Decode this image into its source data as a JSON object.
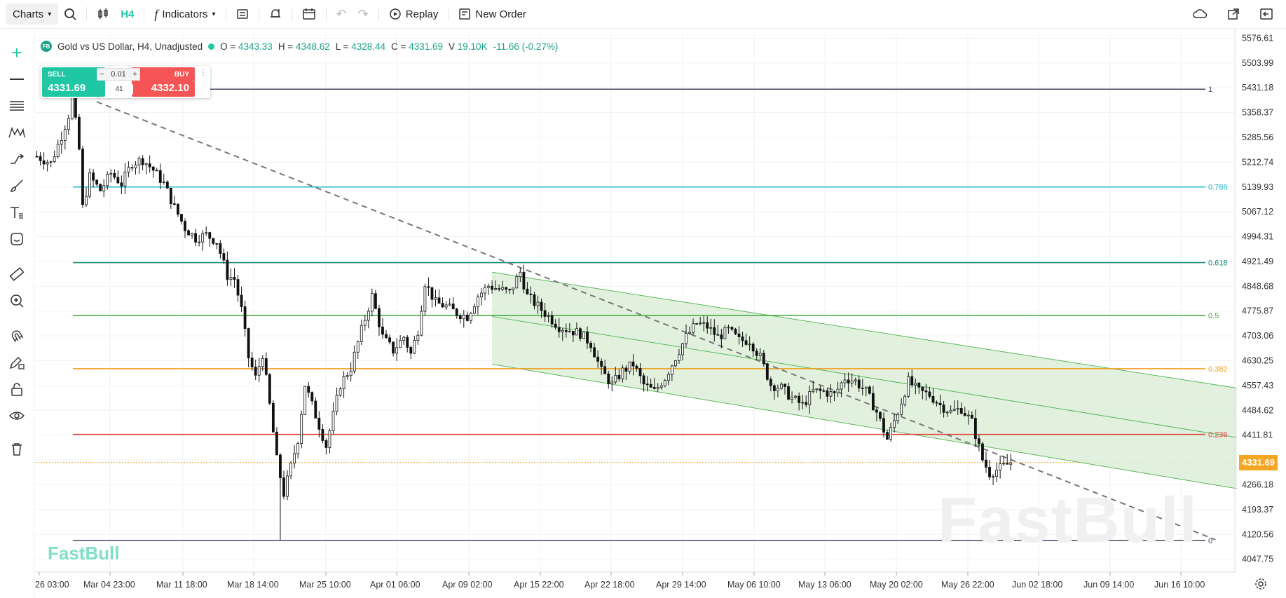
{
  "toolbar": {
    "charts_label": "Charts",
    "timeframe": "H4",
    "indicators_label": "Indicators",
    "replay_label": "Replay",
    "new_order_label": "New Order"
  },
  "legend": {
    "symbol_badge": "FB",
    "symbol": "Gold vs US Dollar, H4, Unadjusted",
    "open_label": "O =",
    "open": "4343.33",
    "high_label": "H =",
    "high": "4348.62",
    "low_label": "L =",
    "low": "4328.44",
    "close_label": "C =",
    "close": "4331.69",
    "volume_label": "V",
    "volume": "19.10K",
    "change": "-11.66 (-0.27%)"
  },
  "trade": {
    "sell_label": "SELL",
    "sell_price": "4331.69",
    "buy_label": "BUY",
    "buy_price": "4332.10",
    "quantity": "0.01",
    "spread": "41",
    "minus": "−",
    "plus": "+"
  },
  "colors": {
    "up": "#1fc7a5",
    "down": "#f55555",
    "candle": "#111111",
    "channel_fill": "#dcefd8",
    "channel_line": "#5cb85c",
    "price_tag": "#f5a623"
  },
  "current_price_tag": "4331.69",
  "watermark": "FastBull",
  "logo": "FastBull",
  "chart_data": {
    "type": "candlestick",
    "symbol": "Gold vs US Dollar",
    "timeframe": "H4",
    "ylim": [
      4010,
      5590
    ],
    "y_ticks": [
      "5576.61",
      "5503.99",
      "5431.18",
      "5358.37",
      "5285.56",
      "5212.74",
      "5139.93",
      "5067.12",
      "4994.31",
      "4921.49",
      "4848.68",
      "4775.87",
      "4703.06",
      "4630.25",
      "4557.43",
      "4484.62",
      "4411.81",
      "4339.00",
      "4266.18",
      "4193.37",
      "4120.56",
      "4047.75"
    ],
    "x_labels": [
      "26 03:00",
      "Mar 04 23:00",
      "Mar 11 18:00",
      "Mar 18 14:00",
      "Mar 25 10:00",
      "Apr 01 06:00",
      "Apr 09 02:00",
      "Apr 15 22:00",
      "Apr 22 18:00",
      "Apr 29 14:00",
      "May 06 10:00",
      "May 13 06:00",
      "May 20 02:00",
      "May 26 22:00",
      "Jun 02 18:00",
      "Jun 09 14:00",
      "Jun 16 10:00"
    ],
    "price_path": [
      [
        0,
        5230
      ],
      [
        4,
        5210
      ],
      [
        7,
        5290
      ],
      [
        9,
        5350
      ],
      [
        10,
        5410
      ],
      [
        12,
        5250
      ],
      [
        13,
        5080
      ],
      [
        15,
        5170
      ],
      [
        18,
        5130
      ],
      [
        21,
        5180
      ],
      [
        24,
        5150
      ],
      [
        27,
        5210
      ],
      [
        30,
        5220
      ],
      [
        33,
        5190
      ],
      [
        36,
        5150
      ],
      [
        39,
        5080
      ],
      [
        42,
        5020
      ],
      [
        45,
        4990
      ],
      [
        48,
        5000
      ],
      [
        51,
        4980
      ],
      [
        54,
        4880
      ],
      [
        56,
        4870
      ],
      [
        58,
        4780
      ],
      [
        60,
        4640
      ],
      [
        62,
        4580
      ],
      [
        64,
        4650
      ],
      [
        66,
        4500
      ],
      [
        68,
        4340
      ],
      [
        70,
        4240
      ],
      [
        72,
        4320
      ],
      [
        74,
        4400
      ],
      [
        76,
        4560
      ],
      [
        78,
        4500
      ],
      [
        80,
        4440
      ],
      [
        82,
        4380
      ],
      [
        84,
        4470
      ],
      [
        86,
        4560
      ],
      [
        89,
        4610
      ],
      [
        92,
        4720
      ],
      [
        95,
        4820
      ],
      [
        98,
        4700
      ],
      [
        101,
        4660
      ],
      [
        104,
        4700
      ],
      [
        106,
        4650
      ],
      [
        108,
        4720
      ],
      [
        110,
        4860
      ],
      [
        113,
        4800
      ],
      [
        116,
        4790
      ],
      [
        119,
        4770
      ],
      [
        122,
        4760
      ],
      [
        125,
        4820
      ],
      [
        128,
        4850
      ],
      [
        131,
        4840
      ],
      [
        134,
        4830
      ],
      [
        137,
        4890
      ],
      [
        139,
        4820
      ],
      [
        142,
        4790
      ],
      [
        145,
        4760
      ],
      [
        148,
        4730
      ],
      [
        151,
        4720
      ],
      [
        154,
        4710
      ],
      [
        157,
        4680
      ],
      [
        160,
        4600
      ],
      [
        163,
        4560
      ],
      [
        166,
        4600
      ],
      [
        169,
        4620
      ],
      [
        172,
        4560
      ],
      [
        175,
        4540
      ],
      [
        178,
        4580
      ],
      [
        181,
        4640
      ],
      [
        184,
        4700
      ],
      [
        187,
        4740
      ],
      [
        190,
        4730
      ],
      [
        193,
        4700
      ],
      [
        196,
        4720
      ],
      [
        199,
        4690
      ],
      [
        202,
        4690
      ],
      [
        205,
        4640
      ],
      [
        208,
        4560
      ],
      [
        211,
        4550
      ],
      [
        214,
        4520
      ],
      [
        217,
        4500
      ],
      [
        220,
        4540
      ],
      [
        223,
        4540
      ],
      [
        226,
        4530
      ],
      [
        229,
        4580
      ],
      [
        232,
        4570
      ],
      [
        235,
        4540
      ],
      [
        238,
        4480
      ],
      [
        241,
        4400
      ],
      [
        244,
        4480
      ],
      [
        247,
        4570
      ],
      [
        250,
        4540
      ],
      [
        253,
        4530
      ],
      [
        256,
        4500
      ],
      [
        259,
        4480
      ],
      [
        262,
        4490
      ],
      [
        265,
        4450
      ],
      [
        268,
        4340
      ],
      [
        270,
        4300
      ],
      [
        272,
        4310
      ],
      [
        274,
        4320
      ],
      [
        276,
        4332
      ]
    ],
    "channel": {
      "upper_start": [
        129,
        4890
      ],
      "upper_end": [
        340,
        4550
      ],
      "lower_start": [
        129,
        4620
      ],
      "lower_end": [
        340,
        4255
      ],
      "mid_start": [
        129,
        4760
      ],
      "mid_end": [
        340,
        4405
      ]
    },
    "trendline": {
      "start": [
        17,
        5390
      ],
      "end": [
        334,
        4105
      ],
      "style": "dashed"
    },
    "fib_levels": [
      {
        "label": "1",
        "price": 5427,
        "color": "#4a4a63"
      },
      {
        "label": "0.786",
        "price": 5140,
        "color": "#19b7c9"
      },
      {
        "label": "0.618",
        "price": 4918,
        "color": "#138a7a"
      },
      {
        "label": "0.5",
        "price": 4763,
        "color": "#3aa835"
      },
      {
        "label": "0.382",
        "price": 4607,
        "color": "#f39a12"
      },
      {
        "label": "0.236",
        "price": 4414,
        "color": "#e53935"
      },
      {
        "label": "0",
        "price": 4103,
        "color": "#4a4a63"
      }
    ],
    "current_price": 4331.69,
    "crosshair_price": 4339.0
  }
}
